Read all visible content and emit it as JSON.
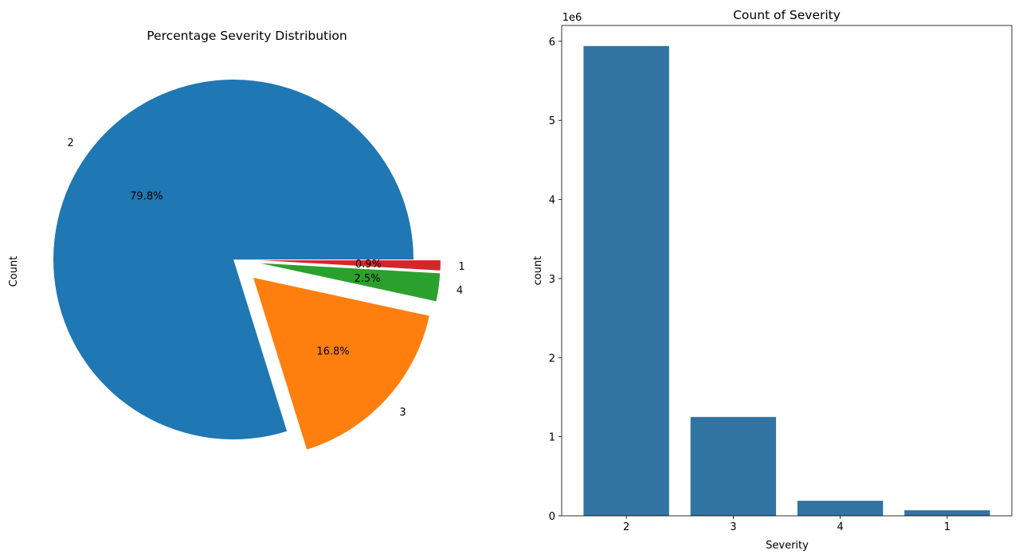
{
  "chart_data": [
    {
      "type": "pie",
      "title": "Percentage Severity Distribution",
      "ylabel": "Count",
      "slices": [
        {
          "label": "2",
          "percent": 79.8,
          "pct_label": "79.8%",
          "color": "#1f77b4",
          "exploded": false
        },
        {
          "label": "3",
          "percent": 16.8,
          "pct_label": "16.8%",
          "color": "#ff7f0e",
          "exploded": true
        },
        {
          "label": "4",
          "percent": 2.5,
          "pct_label": "2.5%",
          "color": "#2ca02c",
          "exploded": true
        },
        {
          "label": "1",
          "percent": 0.9,
          "pct_label": "0.9%",
          "color": "#d62728",
          "exploded": true
        }
      ]
    },
    {
      "type": "bar",
      "title": "Count of Severity",
      "xlabel": "Severity",
      "ylabel": "count",
      "categories": [
        "2",
        "3",
        "4",
        "1"
      ],
      "values": [
        5940000,
        1250000,
        190000,
        70000
      ],
      "ylim": [
        0,
        6200000
      ],
      "yticks": [
        0,
        1,
        2,
        3,
        4,
        5,
        6
      ],
      "ytick_labels": [
        "0",
        "1",
        "2",
        "3",
        "4",
        "5",
        "6"
      ],
      "offset_label": "1e6",
      "color": "#3274a1",
      "grid": false
    }
  ]
}
